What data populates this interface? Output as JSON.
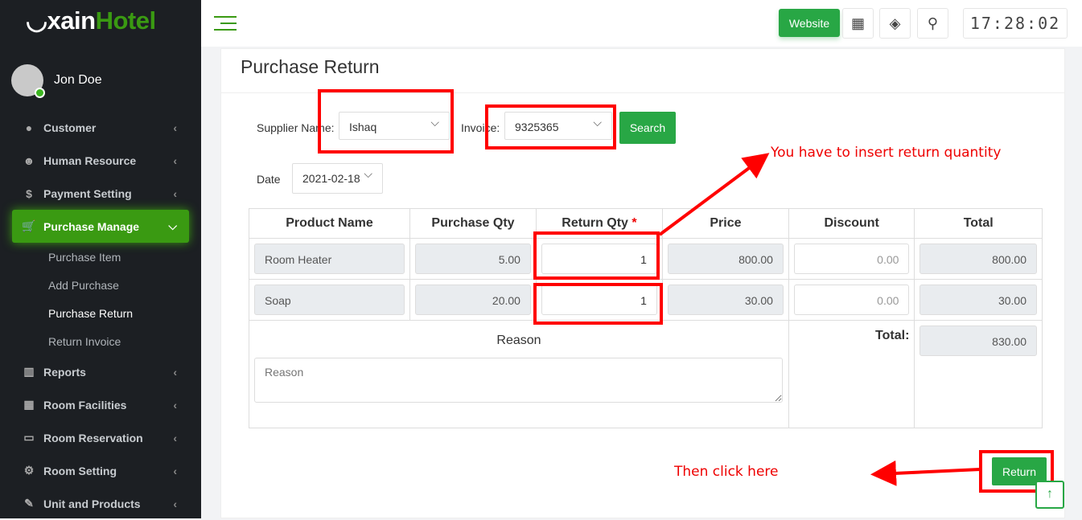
{
  "brand": {
    "part1": "xain",
    "part2": "Hotel"
  },
  "user": {
    "name": "Jon Doe"
  },
  "sidebar": {
    "items": [
      {
        "label": "Customer",
        "icon": "user-icon"
      },
      {
        "label": "Human Resource",
        "icon": "users-icon"
      },
      {
        "label": "Payment Setting",
        "icon": "dollar-icon"
      },
      {
        "label": "Purchase Manage",
        "icon": "cart-icon",
        "active": true
      },
      {
        "label": "Reports",
        "icon": "bar-chart-icon"
      },
      {
        "label": "Room Facilities",
        "icon": "grid-icon"
      },
      {
        "label": "Room Reservation",
        "icon": "film-icon"
      },
      {
        "label": "Room Setting",
        "icon": "gear-icon"
      },
      {
        "label": "Unit and Products",
        "icon": "pin-icon"
      }
    ],
    "submenu": [
      "Purchase Item",
      "Add Purchase",
      "Purchase Return",
      "Return Invoice"
    ],
    "current_sub": "Purchase Return"
  },
  "topbar": {
    "website": "Website",
    "clock": "17:28:02"
  },
  "page": {
    "title": "Purchase Return",
    "supplier_label": "Supplier Name:",
    "supplier_value": "Ishaq",
    "invoice_label": "Invoice:",
    "invoice_value": "9325365",
    "search": "Search",
    "date_label": "Date",
    "date_value": "2021-02-18",
    "columns": [
      "Product Name",
      "Purchase Qty",
      "Return Qty",
      "Price",
      "Discount",
      "Total"
    ],
    "required_mark": "*",
    "rows": [
      {
        "product": "Room Heater",
        "purchase_qty": "5.00",
        "return_qty": "1",
        "price": "800.00",
        "discount": "0.00",
        "total": "800.00"
      },
      {
        "product": "Soap",
        "purchase_qty": "20.00",
        "return_qty": "1",
        "price": "30.00",
        "discount": "0.00",
        "total": "30.00"
      }
    ],
    "reason_label": "Reason",
    "reason_placeholder": "Reason",
    "total_label": "Total:",
    "grand_total": "830.00",
    "return": "Return"
  },
  "annotations": {
    "note1": "You have to insert return quantity",
    "note2": "Then click here",
    "color": "#ff0000"
  }
}
